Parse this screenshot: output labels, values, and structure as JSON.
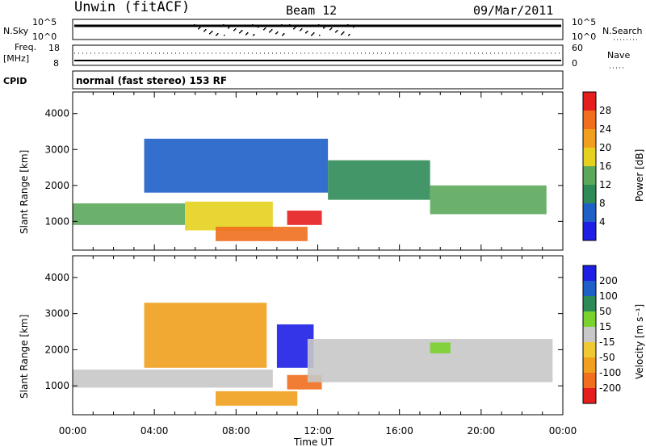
{
  "header": {
    "station": "Unwin (fitACF)",
    "beam": "Beam 12",
    "date": "09/Mar/2011"
  },
  "top_panels": {
    "nsky_label": "N.Sky",
    "nsky_ticks": [
      "10^5",
      "10^0"
    ],
    "nsearch_label": "N.Search",
    "nsearch_ticks": [
      "10^5",
      "10^0"
    ],
    "freq_label": "Freq.",
    "freq_unit": "[MHz]",
    "freq_ticks": [
      "18",
      "8"
    ],
    "nave_label": "Nave",
    "nave_ticks": [
      "60",
      "0"
    ],
    "cpid_label": "CPID",
    "cpid_text": "normal (fast stereo) 153 RF"
  },
  "chart_data": [
    {
      "type": "heatmap",
      "panel": "power",
      "ylabel": "Slant Range [km]",
      "ylim": [
        200,
        4600
      ],
      "yticks": [
        "1000",
        "2000",
        "3000",
        "4000"
      ],
      "xlim": [
        0,
        24
      ],
      "colorbar_label": "Power [dB]",
      "colorbar_ticks": [
        "28",
        "24",
        "20",
        "16",
        "12",
        "8",
        "4"
      ],
      "colors": [
        "#1e1ee6",
        "#1f5fc8",
        "#2e8b57",
        "#5ba85b",
        "#e6d21e",
        "#f0a01e",
        "#f06e1e",
        "#e61e1e"
      ],
      "regions": [
        {
          "t0": 0.0,
          "t1": 5.5,
          "r0": 900,
          "r1": 1500,
          "level": 3
        },
        {
          "t0": 5.5,
          "t1": 9.8,
          "r0": 750,
          "r1": 1550,
          "level": 4
        },
        {
          "t0": 7.0,
          "t1": 11.5,
          "r0": 450,
          "r1": 850,
          "level": 6
        },
        {
          "t0": 10.5,
          "t1": 12.2,
          "r0": 900,
          "r1": 1300,
          "level": 7
        },
        {
          "t0": 3.5,
          "t1": 12.5,
          "r0": 1800,
          "r1": 3300,
          "level": 1
        },
        {
          "t0": 12.5,
          "t1": 17.5,
          "r0": 1600,
          "r1": 2700,
          "level": 2
        },
        {
          "t0": 17.5,
          "t1": 23.2,
          "r0": 1200,
          "r1": 2000,
          "level": 3
        }
      ]
    },
    {
      "type": "heatmap",
      "panel": "velocity",
      "ylabel": "Slant Range [km]",
      "ylim": [
        200,
        4600
      ],
      "yticks": [
        "1000",
        "2000",
        "3000",
        "4000"
      ],
      "xlim": [
        0,
        24
      ],
      "xticks": [
        "00:00",
        "04:00",
        "08:00",
        "12:00",
        "16:00",
        "20:00",
        "00:00"
      ],
      "xlabel": "Time UT",
      "colorbar_label": "Velocity [m s⁻¹]",
      "colorbar_ticks": [
        "200",
        "100",
        "50",
        "15",
        "-15",
        "-50",
        "-100",
        "-200"
      ],
      "colors": [
        "#e61e1e",
        "#f06e1e",
        "#f0a01e",
        "#f0c832",
        "#c8c8c8",
        "#7ad22e",
        "#2e8b57",
        "#1f5fc8",
        "#1e1ee6"
      ],
      "regions": [
        {
          "t0": 0.0,
          "t1": 9.8,
          "r0": 950,
          "r1": 1450,
          "level": 4
        },
        {
          "t0": 3.5,
          "t1": 9.5,
          "r0": 1500,
          "r1": 3300,
          "level": 2
        },
        {
          "t0": 7.0,
          "t1": 11.0,
          "r0": 450,
          "r1": 850,
          "level": 2
        },
        {
          "t0": 10.5,
          "t1": 12.2,
          "r0": 900,
          "r1": 1300,
          "level": 1
        },
        {
          "t0": 10.0,
          "t1": 11.8,
          "r0": 1500,
          "r1": 2700,
          "level": 8
        },
        {
          "t0": 11.5,
          "t1": 23.5,
          "r0": 1100,
          "r1": 2300,
          "level": 4
        },
        {
          "t0": 17.5,
          "t1": 18.5,
          "r0": 1900,
          "r1": 2200,
          "level": 5
        }
      ]
    }
  ]
}
